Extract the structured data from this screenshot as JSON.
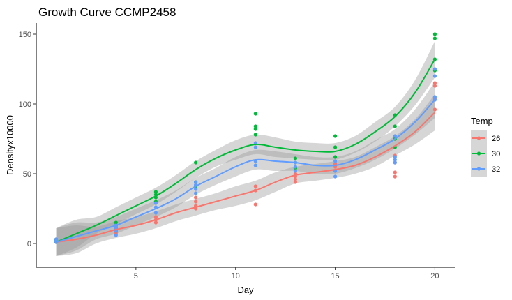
{
  "chart_data": {
    "type": "scatter",
    "title": "Growth Curve CCMP2458",
    "xlabel": "Day",
    "ylabel": "Densityx10000",
    "xlim": [
      0,
      21
    ],
    "ylim": [
      -17,
      158
    ],
    "xticks": [
      5,
      10,
      15,
      20
    ],
    "yticks": [
      0,
      50,
      100,
      150
    ],
    "grid": false,
    "smooth": "loess",
    "legend": {
      "title": "Temp",
      "position": "right"
    },
    "series": [
      {
        "name": "26",
        "color": "#F8766D",
        "points": [
          [
            1,
            1
          ],
          [
            1,
            2
          ],
          [
            1,
            3
          ],
          [
            4,
            7
          ],
          [
            4,
            8
          ],
          [
            4,
            10
          ],
          [
            4,
            12
          ],
          [
            6,
            15
          ],
          [
            6,
            17
          ],
          [
            6,
            19
          ],
          [
            8,
            25
          ],
          [
            8,
            27
          ],
          [
            8,
            30
          ],
          [
            8,
            33
          ],
          [
            11,
            28
          ],
          [
            11,
            38
          ],
          [
            11,
            41
          ],
          [
            13,
            44
          ],
          [
            13,
            46
          ],
          [
            13,
            48
          ],
          [
            13,
            50
          ],
          [
            15,
            52
          ],
          [
            15,
            55
          ],
          [
            15,
            57
          ],
          [
            18,
            48
          ],
          [
            18,
            51
          ],
          [
            18,
            58
          ],
          [
            18,
            63
          ],
          [
            20,
            96
          ],
          [
            20,
            104
          ],
          [
            20,
            113
          ],
          [
            20,
            115
          ]
        ],
        "fit": [
          [
            1,
            1
          ],
          [
            2,
            3
          ],
          [
            3,
            6
          ],
          [
            4,
            10
          ],
          [
            5,
            13
          ],
          [
            6,
            17
          ],
          [
            7,
            22
          ],
          [
            8,
            26
          ],
          [
            9,
            30
          ],
          [
            10,
            34
          ],
          [
            11,
            38
          ],
          [
            12,
            44
          ],
          [
            13,
            49
          ],
          [
            14,
            51
          ],
          [
            15,
            53
          ],
          [
            16,
            56
          ],
          [
            17,
            62
          ],
          [
            18,
            70
          ],
          [
            19,
            80
          ],
          [
            20,
            94
          ]
        ]
      },
      {
        "name": "30",
        "color": "#00BA38",
        "points": [
          [
            1,
            1
          ],
          [
            1,
            2
          ],
          [
            1,
            3
          ],
          [
            4,
            9
          ],
          [
            4,
            11
          ],
          [
            4,
            13
          ],
          [
            4,
            15
          ],
          [
            6,
            30
          ],
          [
            6,
            33
          ],
          [
            6,
            35
          ],
          [
            6,
            37
          ],
          [
            8,
            41
          ],
          [
            8,
            44
          ],
          [
            8,
            58
          ],
          [
            11,
            78
          ],
          [
            11,
            82
          ],
          [
            11,
            84
          ],
          [
            11,
            93
          ],
          [
            13,
            54
          ],
          [
            13,
            58
          ],
          [
            13,
            61
          ],
          [
            15,
            62
          ],
          [
            15,
            69
          ],
          [
            15,
            77
          ],
          [
            18,
            69
          ],
          [
            18,
            75
          ],
          [
            18,
            84
          ],
          [
            18,
            92
          ],
          [
            20,
            124
          ],
          [
            20,
            132
          ],
          [
            20,
            147
          ],
          [
            20,
            150
          ]
        ],
        "fit": [
          [
            1,
            1
          ],
          [
            2,
            7
          ],
          [
            3,
            13
          ],
          [
            4,
            20
          ],
          [
            5,
            27
          ],
          [
            6,
            34
          ],
          [
            7,
            43
          ],
          [
            8,
            53
          ],
          [
            9,
            61
          ],
          [
            10,
            67
          ],
          [
            11,
            71
          ],
          [
            12,
            69
          ],
          [
            13,
            67
          ],
          [
            14,
            66
          ],
          [
            15,
            66
          ],
          [
            16,
            71
          ],
          [
            17,
            80
          ],
          [
            18,
            91
          ],
          [
            19,
            108
          ],
          [
            20,
            132
          ]
        ]
      },
      {
        "name": "32",
        "color": "#619CFF",
        "points": [
          [
            1,
            1
          ],
          [
            1,
            2
          ],
          [
            1,
            3
          ],
          [
            4,
            6
          ],
          [
            4,
            9
          ],
          [
            4,
            11
          ],
          [
            4,
            13
          ],
          [
            6,
            22
          ],
          [
            6,
            26
          ],
          [
            6,
            29
          ],
          [
            8,
            36
          ],
          [
            8,
            39
          ],
          [
            8,
            42
          ],
          [
            8,
            44
          ],
          [
            11,
            56
          ],
          [
            11,
            59
          ],
          [
            11,
            69
          ],
          [
            11,
            72
          ],
          [
            13,
            52
          ],
          [
            13,
            55
          ],
          [
            13,
            58
          ],
          [
            15,
            48
          ],
          [
            15,
            52
          ],
          [
            15,
            59
          ],
          [
            18,
            58
          ],
          [
            18,
            60
          ],
          [
            18,
            62
          ],
          [
            18,
            77
          ],
          [
            20,
            103
          ],
          [
            20,
            105
          ],
          [
            20,
            120
          ],
          [
            20,
            125
          ]
        ],
        "fit": [
          [
            1,
            1
          ],
          [
            2,
            5
          ],
          [
            3,
            9
          ],
          [
            4,
            13
          ],
          [
            5,
            19
          ],
          [
            6,
            25
          ],
          [
            7,
            32
          ],
          [
            8,
            41
          ],
          [
            9,
            48
          ],
          [
            10,
            55
          ],
          [
            11,
            60
          ],
          [
            12,
            59
          ],
          [
            13,
            58
          ],
          [
            14,
            56
          ],
          [
            15,
            56
          ],
          [
            16,
            60
          ],
          [
            17,
            67
          ],
          [
            18,
            75
          ],
          [
            19,
            87
          ],
          [
            20,
            103
          ]
        ]
      }
    ]
  }
}
